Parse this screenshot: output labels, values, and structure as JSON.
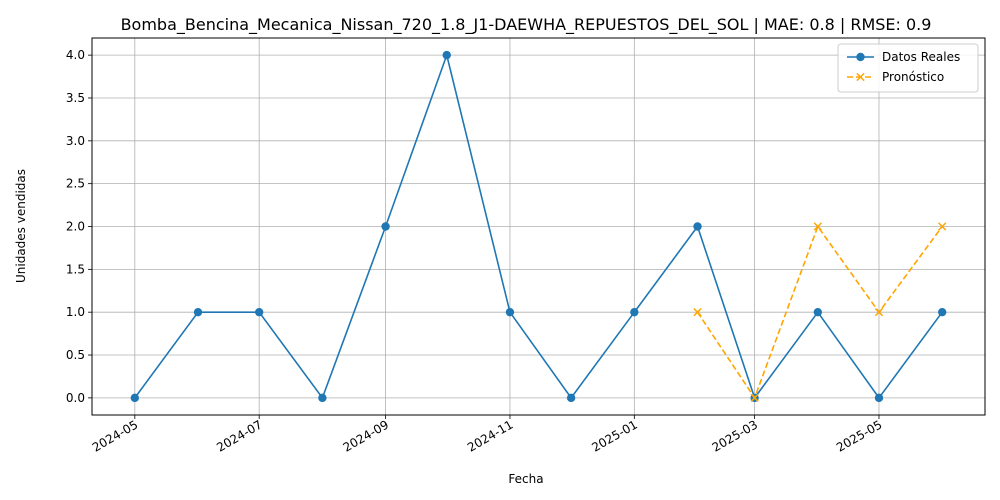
{
  "chart_data": {
    "type": "line",
    "title": "Bomba_Bencina_Mecanica_Nissan_720_1.8_J1-DAEWHA_REPUESTOS_DEL_SOL | MAE: 0.8 | RMSE: 0.9",
    "xlabel": "Fecha",
    "ylabel": "Unidades vendidas",
    "ylim": [
      -0.2,
      4.2
    ],
    "xlim": [
      "2024-04-10",
      "2025-06-22"
    ],
    "grid": true,
    "legend_position": "top-right",
    "x_ticks": [
      "2024-05",
      "2024-07",
      "2024-09",
      "2024-11",
      "2025-01",
      "2025-03",
      "2025-05"
    ],
    "y_ticks": [
      "0.0",
      "0.5",
      "1.0",
      "1.5",
      "2.0",
      "2.5",
      "3.0",
      "3.5",
      "4.0"
    ],
    "series": [
      {
        "name": "Datos Reales",
        "color": "#1f77b4",
        "style": "solid",
        "marker": "circle",
        "points": [
          {
            "x": "2024-05-01",
            "y": 0
          },
          {
            "x": "2024-06-01",
            "y": 1
          },
          {
            "x": "2024-07-01",
            "y": 1
          },
          {
            "x": "2024-08-01",
            "y": 0
          },
          {
            "x": "2024-09-01",
            "y": 2
          },
          {
            "x": "2024-10-01",
            "y": 4
          },
          {
            "x": "2024-11-01",
            "y": 1
          },
          {
            "x": "2024-12-01",
            "y": 0
          },
          {
            "x": "2025-01-01",
            "y": 1
          },
          {
            "x": "2025-02-01",
            "y": 2
          },
          {
            "x": "2025-03-01",
            "y": 0
          },
          {
            "x": "2025-04-01",
            "y": 1
          },
          {
            "x": "2025-05-01",
            "y": 0
          },
          {
            "x": "2025-06-01",
            "y": 1
          }
        ]
      },
      {
        "name": "Pronóstico",
        "color": "#ffa500",
        "style": "dashed",
        "marker": "x",
        "points": [
          {
            "x": "2025-02-01",
            "y": 1
          },
          {
            "x": "2025-03-01",
            "y": 0
          },
          {
            "x": "2025-04-01",
            "y": 2
          },
          {
            "x": "2025-05-01",
            "y": 1
          },
          {
            "x": "2025-06-01",
            "y": 2
          }
        ]
      }
    ]
  }
}
